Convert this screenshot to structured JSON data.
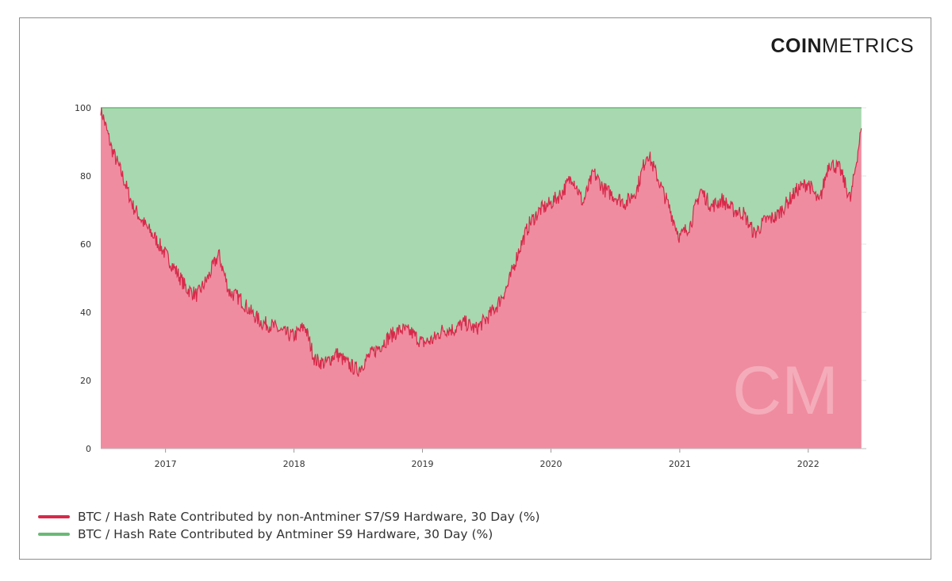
{
  "brand": {
    "bold": "COIN",
    "thin": "METRICS",
    "watermark": "CM"
  },
  "colors": {
    "red_area": "#f08ca0",
    "red_line": "#d8294a",
    "green_area": "#a7d8b0",
    "green_line": "#6ab977"
  },
  "chart_data": {
    "type": "area",
    "stacked": true,
    "x_unit": "date",
    "xlim": [
      "2016-07-01",
      "2022-06-15"
    ],
    "ylim": [
      0,
      100
    ],
    "y_ticks": [
      0,
      20,
      40,
      60,
      80,
      100
    ],
    "x_ticks": [
      "2017",
      "2018",
      "2019",
      "2020",
      "2021",
      "2022"
    ],
    "grid": "horizontal",
    "legend": "bottom-left",
    "series": [
      {
        "name": "BTC / Hash Rate Contributed by non-Antminer S7/S9 Hardware, 30 Day (%)",
        "x": [
          "2016-07-01",
          "2016-08-01",
          "2016-09-01",
          "2016-10-01",
          "2016-11-01",
          "2016-12-01",
          "2017-01-01",
          "2017-02-01",
          "2017-03-01",
          "2017-04-01",
          "2017-05-01",
          "2017-06-01",
          "2017-07-01",
          "2017-08-01",
          "2017-09-01",
          "2017-10-01",
          "2017-11-01",
          "2017-12-01",
          "2018-01-01",
          "2018-02-01",
          "2018-03-01",
          "2018-04-01",
          "2018-05-01",
          "2018-06-01",
          "2018-07-01",
          "2018-08-01",
          "2018-09-01",
          "2018-10-01",
          "2018-11-01",
          "2018-12-01",
          "2019-01-01",
          "2019-02-01",
          "2019-03-01",
          "2019-04-01",
          "2019-05-01",
          "2019-06-01",
          "2019-07-01",
          "2019-08-01",
          "2019-09-01",
          "2019-10-01",
          "2019-11-01",
          "2019-12-01",
          "2020-01-01",
          "2020-02-01",
          "2020-03-01",
          "2020-04-01",
          "2020-05-01",
          "2020-06-01",
          "2020-07-01",
          "2020-08-01",
          "2020-09-01",
          "2020-10-01",
          "2020-11-01",
          "2020-12-01",
          "2021-01-01",
          "2021-02-01",
          "2021-03-01",
          "2021-04-01",
          "2021-05-01",
          "2021-06-01",
          "2021-07-01",
          "2021-08-01",
          "2021-09-01",
          "2021-10-01",
          "2021-11-01",
          "2021-12-01",
          "2022-01-01",
          "2022-02-01",
          "2022-03-01",
          "2022-04-01",
          "2022-05-01",
          "2022-06-01"
        ],
        "values": [
          100,
          88,
          80,
          71,
          66,
          62,
          57,
          52,
          47,
          45,
          50,
          57,
          46,
          44,
          40,
          37,
          36,
          34,
          33,
          36,
          26,
          25,
          28,
          25,
          23,
          27,
          30,
          33,
          35,
          34,
          31,
          32,
          35,
          35,
          37,
          35,
          38,
          42,
          48,
          58,
          66,
          70,
          72,
          75,
          80,
          72,
          81,
          76,
          74,
          72,
          76,
          87,
          79,
          71,
          62,
          66,
          76,
          71,
          73,
          70,
          69,
          63,
          67,
          68,
          72,
          76,
          78,
          72,
          84,
          82,
          73,
          94
        ]
      },
      {
        "name": "BTC / Hash Rate Contributed by Antminer S9 Hardware, 30 Day (%)",
        "note_stack": "remainder to 100"
      }
    ]
  }
}
